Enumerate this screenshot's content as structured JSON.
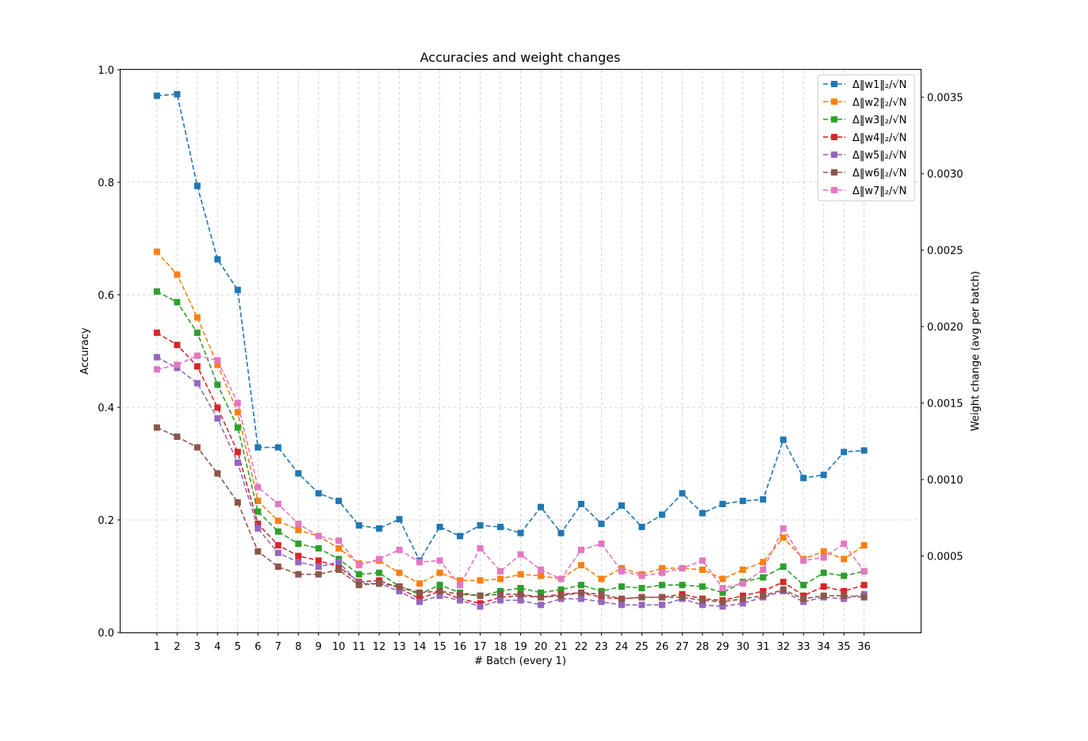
{
  "chart_data": {
    "type": "line",
    "title": "Accuracies and weight changes",
    "xlabel": "# Batch (every 1)",
    "ylabel_left": "Accuracy",
    "ylabel_right": "Weight change (avg per batch)",
    "x": [
      1,
      2,
      3,
      4,
      5,
      6,
      7,
      8,
      9,
      10,
      11,
      12,
      13,
      14,
      15,
      16,
      17,
      18,
      19,
      20,
      21,
      22,
      23,
      24,
      25,
      26,
      27,
      28,
      29,
      30,
      31,
      32,
      33,
      34,
      35,
      36
    ],
    "xlim": [
      -0.8,
      38.8
    ],
    "ylim_left": [
      0.0,
      1.0
    ],
    "yticks_left": [
      "0.0",
      "0.2",
      "0.4",
      "0.6",
      "0.8",
      "1.0"
    ],
    "ylim_right": [
      0.0,
      0.00368
    ],
    "yticks_right": [
      "0.0005",
      "0.0010",
      "0.0015",
      "0.0020",
      "0.0025",
      "0.0030",
      "0.0035"
    ],
    "ytick_values_right": [
      0.0005,
      0.001,
      0.0015,
      0.002,
      0.0025,
      0.003,
      0.0035
    ],
    "grid": true,
    "legend_position": "top-right",
    "line_style": "dashed",
    "marker": "square",
    "series": [
      {
        "name": "Δ‖w1‖₂/√N",
        "color": "#1f77b4",
        "axis": "right",
        "values": [
          0.00351,
          0.00352,
          0.00292,
          0.00244,
          0.00224,
          0.00121,
          0.00121,
          0.00104,
          0.00091,
          0.00086,
          0.0007,
          0.00068,
          0.00074,
          0.00047,
          0.00069,
          0.00063,
          0.0007,
          0.00069,
          0.00065,
          0.00082,
          0.00065,
          0.00084,
          0.00071,
          0.00083,
          0.00069,
          0.00077,
          0.00091,
          0.00078,
          0.00084,
          0.00086,
          0.00087,
          0.00126,
          0.00101,
          0.00103,
          0.00118,
          0.00119
        ]
      },
      {
        "name": "Δ‖w2‖₂/√N",
        "color": "#ff7f0e",
        "axis": "right",
        "values": [
          0.00249,
          0.00234,
          0.00206,
          0.00175,
          0.00144,
          0.00086,
          0.00073,
          0.00067,
          0.00063,
          0.00055,
          0.00045,
          0.00047,
          0.00039,
          0.00032,
          0.00039,
          0.00034,
          0.00034,
          0.00035,
          0.00038,
          0.00037,
          0.00035,
          0.00044,
          0.00035,
          0.00042,
          0.00038,
          0.00042,
          0.00042,
          0.00041,
          0.00035,
          0.00041,
          0.00046,
          0.00062,
          0.00048,
          0.00053,
          0.00048,
          0.00057
        ]
      },
      {
        "name": "Δ‖w3‖₂/√N",
        "color": "#2ca02c",
        "axis": "right",
        "values": [
          0.00223,
          0.00216,
          0.00196,
          0.00162,
          0.00134,
          0.00079,
          0.00066,
          0.00058,
          0.00055,
          0.00048,
          0.00038,
          0.00039,
          0.0003,
          0.00025,
          0.00031,
          0.00026,
          0.00024,
          0.00027,
          0.00029,
          0.00026,
          0.00028,
          0.00031,
          0.00027,
          0.0003,
          0.00029,
          0.00031,
          0.00031,
          0.0003,
          0.00026,
          0.00033,
          0.00036,
          0.00043,
          0.00031,
          0.00039,
          0.00037,
          0.0004
        ]
      },
      {
        "name": "Δ‖w4‖₂/√N",
        "color": "#d62728",
        "axis": "right",
        "values": [
          0.00196,
          0.00188,
          0.00174,
          0.00147,
          0.00118,
          0.00071,
          0.00057,
          0.0005,
          0.00047,
          0.00043,
          0.00033,
          0.00034,
          0.00029,
          0.00022,
          0.00027,
          0.00022,
          0.00019,
          0.00023,
          0.00024,
          0.00023,
          0.00025,
          0.00026,
          0.00023,
          0.00022,
          0.00023,
          0.00023,
          0.00025,
          0.00022,
          0.00021,
          0.00024,
          0.00027,
          0.00033,
          0.00024,
          0.0003,
          0.00027,
          0.00031
        ]
      },
      {
        "name": "Δ‖w5‖₂/√N",
        "color": "#9467bd",
        "axis": "right",
        "values": [
          0.0018,
          0.00173,
          0.00163,
          0.0014,
          0.00111,
          0.00068,
          0.00052,
          0.00046,
          0.00043,
          0.00046,
          0.00032,
          0.00032,
          0.00027,
          0.0002,
          0.00024,
          0.00021,
          0.00017,
          0.00021,
          0.00021,
          0.00018,
          0.00022,
          0.00022,
          0.0002,
          0.00018,
          0.00018,
          0.00018,
          0.00022,
          0.00018,
          0.00017,
          0.00019,
          0.00023,
          0.00027,
          0.0002,
          0.00023,
          0.00022,
          0.00025
        ]
      },
      {
        "name": "Δ‖w6‖₂/√N",
        "color": "#8c564b",
        "axis": "right",
        "values": [
          0.00134,
          0.00128,
          0.00121,
          0.00104,
          0.00085,
          0.00053,
          0.00043,
          0.00038,
          0.00038,
          0.00041,
          0.00031,
          0.00032,
          0.0003,
          0.00026,
          0.00027,
          0.00025,
          0.00024,
          0.00025,
          0.00025,
          0.00023,
          0.00024,
          0.00026,
          0.00025,
          0.00022,
          0.00023,
          0.00023,
          0.00023,
          0.00021,
          0.0002,
          0.00022,
          0.00024,
          0.00028,
          0.00022,
          0.00024,
          0.00024,
          0.00023
        ]
      },
      {
        "name": "Δ‖w7‖₂/√N",
        "color": "#e377c2",
        "axis": "right",
        "values": [
          0.00172,
          0.00175,
          0.00181,
          0.00178,
          0.0015,
          0.00095,
          0.00084,
          0.00071,
          0.00063,
          0.0006,
          0.00044,
          0.00048,
          0.00054,
          0.00046,
          0.00047,
          0.00031,
          0.00055,
          0.0004,
          0.00051,
          0.00041,
          0.00035,
          0.00054,
          0.00058,
          0.0004,
          0.00037,
          0.00039,
          0.00042,
          0.00047,
          0.00029,
          0.00032,
          0.00041,
          0.00068,
          0.00047,
          0.00049,
          0.00058,
          0.0004
        ]
      }
    ]
  }
}
